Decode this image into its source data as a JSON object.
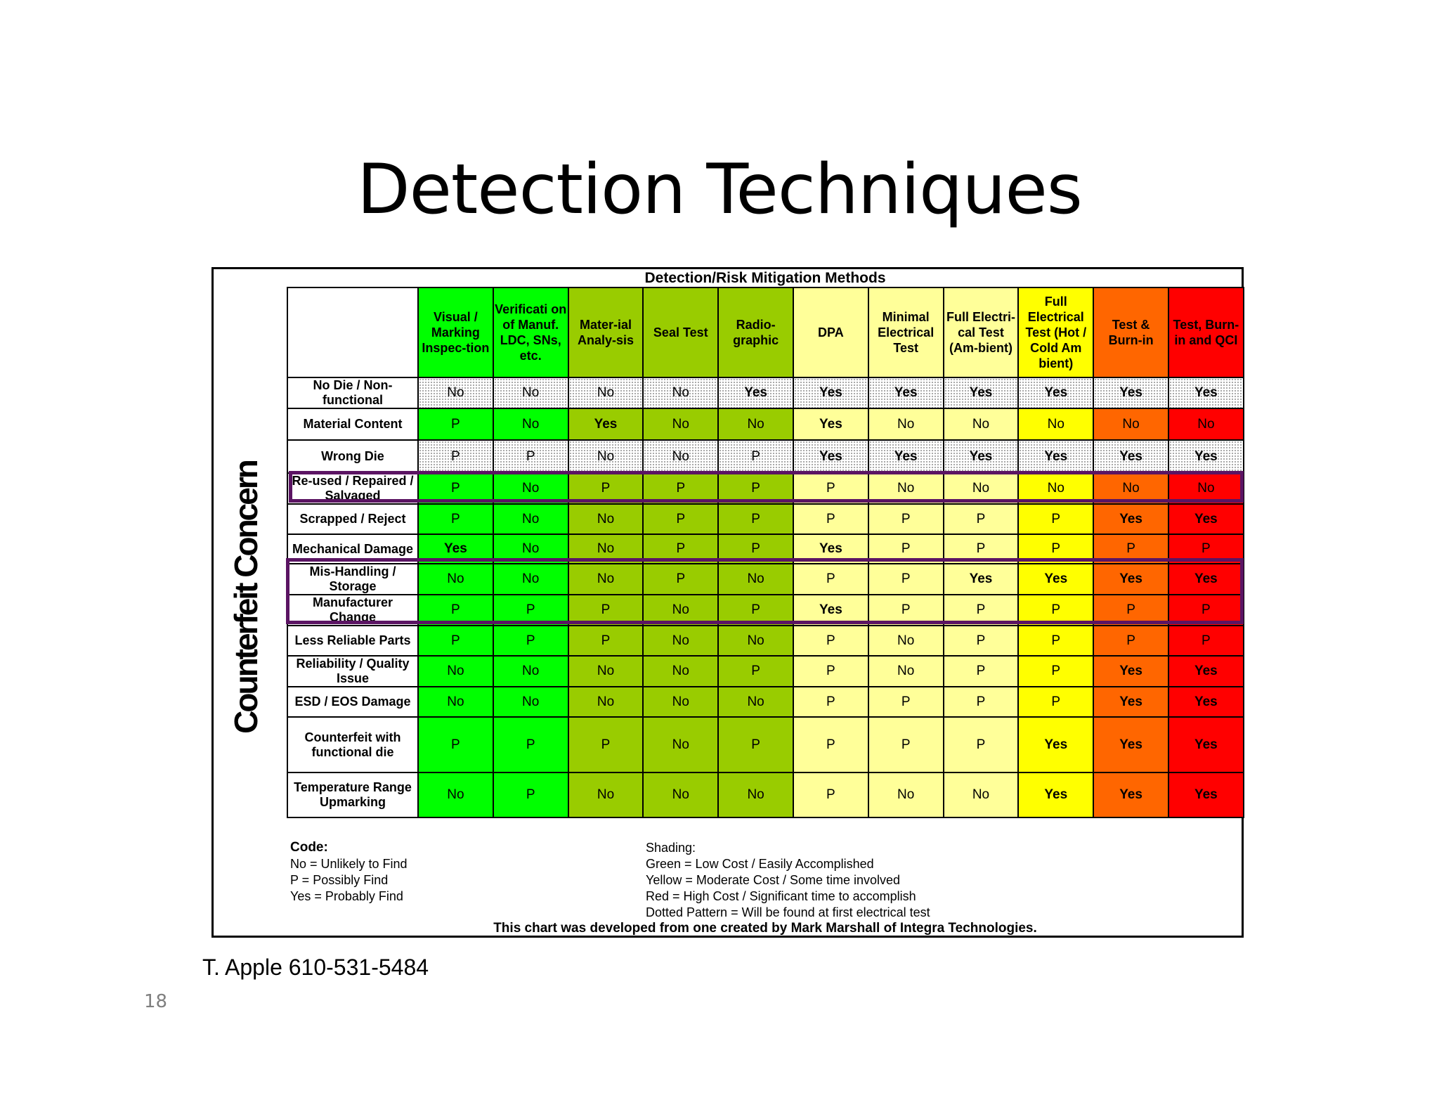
{
  "slide": {
    "title": "Detection Techniques",
    "contact": "T. Apple 610-531-5484",
    "page_number": "18"
  },
  "chart": {
    "methods_title": "Detection/Risk Mitigation Methods",
    "concern_label": "Counterfeit Concern",
    "columns": [
      {
        "label": "Visual / Marking Inspec-tion",
        "color": "#00ff00"
      },
      {
        "label": "Verificati on of Manuf. LDC, SNs, etc.",
        "color": "#00ff00"
      },
      {
        "label": "Mater-ial Analy-sis",
        "color": "#99cc00"
      },
      {
        "label": "Seal Test",
        "color": "#99cc00"
      },
      {
        "label": "Radio-graphic",
        "color": "#99cc00"
      },
      {
        "label": "DPA",
        "color": "#ffff99"
      },
      {
        "label": "Minimal Electrical Test",
        "color": "#ffff99"
      },
      {
        "label": "Full Electri-cal Test (Am-bient)",
        "color": "#ffff99"
      },
      {
        "label": "Full Electrical Test (Hot / Cold Am bient)",
        "color": "#ffff00"
      },
      {
        "label": "Test & Burn-in",
        "color": "#ff6600"
      },
      {
        "label": "Test, Burn-in and QCI",
        "color": "#ff0000"
      }
    ],
    "rows": [
      {
        "label": "No Die / Non-functional",
        "dotted": true,
        "values": [
          "No",
          "No",
          "No",
          "No",
          "Yes",
          "Yes",
          "Yes",
          "Yes",
          "Yes",
          "Yes",
          "Yes"
        ]
      },
      {
        "label": "Material Content",
        "dotted": false,
        "values": [
          "P",
          "No",
          "Yes",
          "No",
          "No",
          "Yes",
          "No",
          "No",
          "No",
          "No",
          "No"
        ]
      },
      {
        "label": "Wrong Die",
        "dotted": true,
        "values": [
          "P",
          "P",
          "No",
          "No",
          "P",
          "Yes",
          "Yes",
          "Yes",
          "Yes",
          "Yes",
          "Yes"
        ]
      },
      {
        "label": "Re-used / Repaired / Salvaged",
        "dotted": false,
        "values": [
          "P",
          "No",
          "P",
          "P",
          "P",
          "P",
          "No",
          "No",
          "No",
          "No",
          "No"
        ]
      },
      {
        "label": "Scrapped / Reject",
        "dotted": false,
        "values": [
          "P",
          "No",
          "No",
          "P",
          "P",
          "P",
          "P",
          "P",
          "P",
          "Yes",
          "Yes"
        ]
      },
      {
        "label": "Mechanical Damage",
        "dotted": false,
        "values": [
          "Yes",
          "No",
          "No",
          "P",
          "P",
          "Yes",
          "P",
          "P",
          "P",
          "P",
          "P"
        ]
      },
      {
        "label": "Mis-Handling / Storage",
        "dotted": false,
        "values": [
          "No",
          "No",
          "No",
          "P",
          "No",
          "P",
          "P",
          "Yes",
          "Yes",
          "Yes",
          "Yes"
        ]
      },
      {
        "label": "Manufacturer Change",
        "dotted": false,
        "values": [
          "P",
          "P",
          "P",
          "No",
          "P",
          "Yes",
          "P",
          "P",
          "P",
          "P",
          "P"
        ]
      },
      {
        "label": "Less Reliable Parts",
        "dotted": false,
        "values": [
          "P",
          "P",
          "P",
          "No",
          "No",
          "P",
          "No",
          "P",
          "P",
          "P",
          "P"
        ]
      },
      {
        "label": "Reliability / Quality Issue",
        "dotted": false,
        "values": [
          "No",
          "No",
          "No",
          "No",
          "P",
          "P",
          "No",
          "P",
          "P",
          "Yes",
          "Yes"
        ]
      },
      {
        "label": "ESD / EOS Damage",
        "dotted": false,
        "values": [
          "No",
          "No",
          "No",
          "No",
          "No",
          "P",
          "P",
          "P",
          "P",
          "Yes",
          "Yes"
        ]
      },
      {
        "label": "Counterfeit with functional die",
        "dotted": false,
        "values": [
          "P",
          "P",
          "P",
          "No",
          "P",
          "P",
          "P",
          "P",
          "Yes",
          "Yes",
          "Yes"
        ]
      },
      {
        "label": "Temperature Range Upmarking",
        "dotted": false,
        "values": [
          "No",
          "P",
          "No",
          "No",
          "No",
          "P",
          "No",
          "No",
          "Yes",
          "Yes",
          "Yes"
        ]
      }
    ],
    "highlight_color": "#5b1463",
    "highlighted_rows": [
      "Re-used / Repaired / Salvaged",
      "Mis-Handling / Storage",
      "Manufacturer Change"
    ]
  },
  "legend": {
    "code_title": "Code:",
    "code_lines": [
      "No = Unlikely to Find",
      "P = Possibly Find",
      "Yes = Probably Find"
    ],
    "shading_title": "Shading:",
    "shading_lines": [
      "Green = Low Cost / Easily Accomplished",
      "Yellow = Moderate Cost / Some time involved",
      "Red = High Cost / Significant time to accomplish",
      "Dotted Pattern = Will be found at first electrical test"
    ],
    "credit": "This chart was developed from one created by Mark Marshall of Integra Technologies."
  }
}
